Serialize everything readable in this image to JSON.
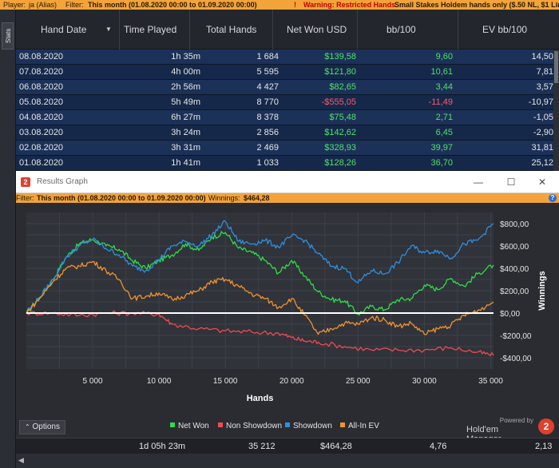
{
  "topbar": {
    "player_label": "Player:",
    "player": "ja (Alias)",
    "filter_label": "Filter:",
    "filter": "This month (01.08.2020 00:00 to 01.09.2020 00:00)",
    "warning_icon": "!",
    "warning": "Warning: Restricted Hands",
    "warning_detail": "Small Stakes Holdem hands only ($.50 NL, $1 Lim"
  },
  "side_tab": {
    "label": "Stats"
  },
  "columns": [
    "Hand Date",
    "Time Played",
    "Total Hands",
    "Net Won USD",
    "bb/100",
    "EV bb/100"
  ],
  "rows": [
    {
      "date": "08.08.2020",
      "time": "1h 35m",
      "hands": "1 684",
      "net": "$139,58",
      "bb": "9,60",
      "ev": "14,50",
      "neg": false
    },
    {
      "date": "07.08.2020",
      "time": "4h 00m",
      "hands": "5 595",
      "net": "$121,80",
      "bb": "10,61",
      "ev": "7,81",
      "neg": false
    },
    {
      "date": "06.08.2020",
      "time": "2h 56m",
      "hands": "4 427",
      "net": "$82,65",
      "bb": "3,44",
      "ev": "3,57",
      "neg": false
    },
    {
      "date": "05.08.2020",
      "time": "5h 49m",
      "hands": "8 770",
      "net": "-$555,05",
      "bb": "-11,49",
      "ev": "-10,97",
      "neg": true
    },
    {
      "date": "04.08.2020",
      "time": "6h 27m",
      "hands": "8 378",
      "net": "$75,48",
      "bb": "2,71",
      "ev": "-1,05",
      "neg": false
    },
    {
      "date": "03.08.2020",
      "time": "3h 24m",
      "hands": "2 856",
      "net": "$142,62",
      "bb": "6,45",
      "ev": "-2,90",
      "neg": false
    },
    {
      "date": "02.08.2020",
      "time": "3h 31m",
      "hands": "2 469",
      "net": "$328,93",
      "bb": "39,97",
      "ev": "31,81",
      "neg": false
    },
    {
      "date": "01.08.2020",
      "time": "1h 41m",
      "hands": "1 033",
      "net": "$128,26",
      "bb": "36,70",
      "ev": "25,12",
      "neg": false
    }
  ],
  "results_window": {
    "title": "Results Graph",
    "filter_label": "Filter:",
    "filter": "This month (01.08.2020 00:00 to 01.09.2020 00:00)",
    "winnings_label": "Winnings:",
    "winnings": "$464,28",
    "help_icon": "?"
  },
  "options_label": "Options",
  "brand": {
    "powered": "Powered by",
    "name": "Hold'em Manager",
    "logo": "2"
  },
  "totals": {
    "time": "1d 05h 23m",
    "hands": "35 212",
    "net": "$464,28",
    "bb": "4,76",
    "ev": "2,13"
  },
  "chart_data": {
    "type": "line",
    "xlabel": "Hands",
    "ylabel": "Winnings",
    "xlim": [
      0,
      35212
    ],
    "ylim": [
      -500,
      900
    ],
    "xticks": [
      5000,
      10000,
      15000,
      20000,
      25000,
      30000,
      35000
    ],
    "xtick_labels": [
      "5 000",
      "10 000",
      "15 000",
      "20 000",
      "25 000",
      "30 000",
      "35 000"
    ],
    "yticks": [
      800,
      600,
      400,
      200,
      0,
      -200,
      -400
    ],
    "ytick_labels": [
      "$800,00",
      "$600,00",
      "$400,00",
      "$200,00",
      "$0,00",
      "-$200,00",
      "-$400,00"
    ],
    "grid": true,
    "legend": "bottom",
    "series": [
      {
        "name": "Net Won",
        "color": "#2fdc4a",
        "x": [
          0,
          1000,
          2000,
          3000,
          4000,
          5000,
          6000,
          7000,
          8000,
          9000,
          10000,
          11000,
          12000,
          13000,
          14000,
          15000,
          16000,
          17000,
          18000,
          19000,
          20000,
          21000,
          22000,
          23000,
          24000,
          25000,
          26000,
          27000,
          28000,
          29000,
          30000,
          31000,
          32000,
          33000,
          34000,
          35212
        ],
        "y": [
          0,
          140,
          300,
          500,
          620,
          660,
          600,
          570,
          470,
          400,
          470,
          520,
          620,
          560,
          680,
          720,
          580,
          540,
          470,
          360,
          470,
          330,
          190,
          120,
          110,
          -10,
          60,
          30,
          120,
          130,
          250,
          210,
          310,
          240,
          350,
          430
        ]
      },
      {
        "name": "Non Showdown",
        "color": "#ee4b55",
        "x": [
          0,
          2000,
          4000,
          6000,
          8000,
          10000,
          11000,
          13000,
          15000,
          17000,
          19000,
          20000,
          21000,
          22000,
          24000,
          26000,
          28000,
          30000,
          32000,
          34000,
          35212
        ],
        "y": [
          0,
          0,
          -20,
          0,
          0,
          -10,
          -100,
          -140,
          -160,
          -170,
          -180,
          -220,
          -250,
          -260,
          -300,
          -330,
          -330,
          -330,
          -310,
          -350,
          -380
        ]
      },
      {
        "name": "Showdown",
        "color": "#2f8fe0",
        "x": [
          0,
          1000,
          2000,
          3000,
          4000,
          5000,
          6000,
          7000,
          8000,
          9000,
          10000,
          11000,
          12000,
          13000,
          14000,
          15000,
          16000,
          17000,
          18000,
          19000,
          20000,
          21000,
          22000,
          23000,
          24000,
          25000,
          26000,
          27000,
          28000,
          29000,
          30000,
          31000,
          32000,
          33000,
          34000,
          35212
        ],
        "y": [
          0,
          140,
          300,
          500,
          600,
          660,
          580,
          520,
          420,
          380,
          480,
          600,
          640,
          600,
          700,
          820,
          640,
          620,
          650,
          590,
          690,
          650,
          530,
          420,
          400,
          270,
          380,
          350,
          450,
          600,
          540,
          560,
          490,
          620,
          650,
          800
        ]
      },
      {
        "name": "All-In EV",
        "color": "#ef9331",
        "x": [
          0,
          1000,
          2000,
          3000,
          4000,
          5000,
          6000,
          7000,
          8000,
          9000,
          10000,
          11000,
          12000,
          13000,
          14000,
          15000,
          16000,
          17000,
          18000,
          19000,
          20000,
          21000,
          22000,
          23000,
          24000,
          25000,
          26000,
          27000,
          28000,
          29000,
          30000,
          31000,
          32000,
          33000,
          34000,
          35212
        ],
        "y": [
          0,
          130,
          280,
          400,
          420,
          460,
          380,
          300,
          130,
          150,
          180,
          120,
          160,
          200,
          280,
          300,
          240,
          170,
          130,
          50,
          130,
          -20,
          -190,
          -140,
          -90,
          -100,
          -40,
          -60,
          -120,
          -90,
          -190,
          -140,
          -110,
          -20,
          20,
          100
        ]
      }
    ]
  }
}
